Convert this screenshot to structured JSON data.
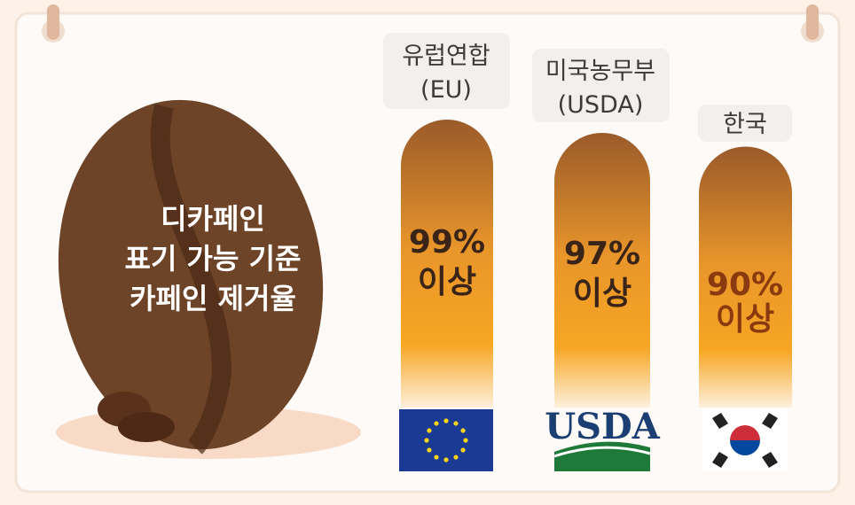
{
  "title": {
    "lines": [
      "디카페인",
      "표기 가능 기준",
      "카페인 제거율"
    ]
  },
  "items": [
    {
      "label_lines": [
        "유럽연합",
        "(EU)"
      ],
      "value": "99%",
      "qualifier": "이상"
    },
    {
      "label_lines": [
        "미국농무부",
        "(USDA)"
      ],
      "value": "97%",
      "qualifier": "이상",
      "logo_text": "USDA"
    },
    {
      "label_lines": [
        "한국"
      ],
      "value": "90%",
      "qualifier": "이상"
    }
  ]
}
